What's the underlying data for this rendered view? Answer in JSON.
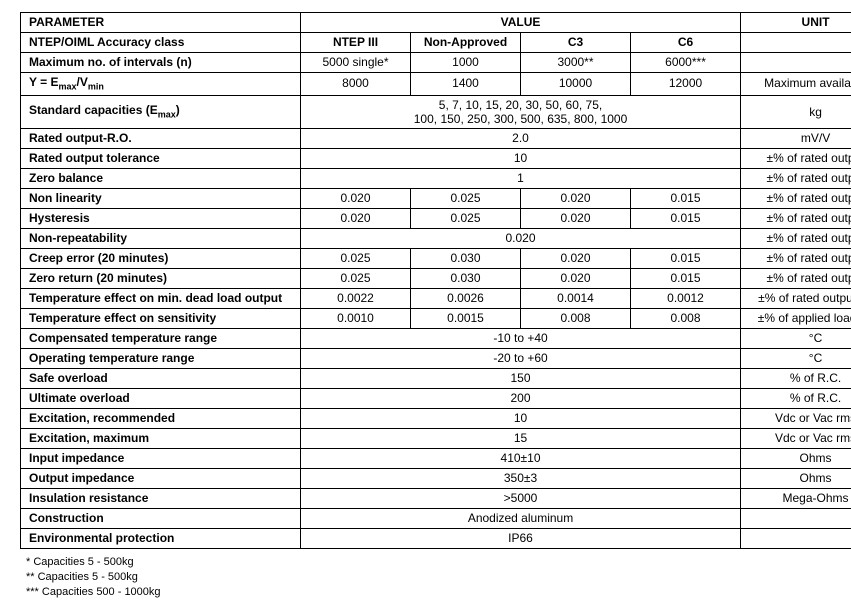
{
  "headers": {
    "parameter": "PARAMETER",
    "value": "VALUE",
    "unit": "UNIT",
    "col1": "NTEP III",
    "col2": "Non-Approved",
    "col3": "C3",
    "col4": "C6"
  },
  "rows": {
    "accuracy_class": {
      "label": "NTEP/OIML Accuracy class"
    },
    "max_intervals": {
      "label": "Maximum no. of intervals (n)",
      "v1": "5000 single*",
      "v2": "1000",
      "v3": "3000**",
      "v4": "6000***",
      "unit": ""
    },
    "y_emax_vmin": {
      "label_html": "Y = E<sub>max</sub>/V<sub>min</sub>",
      "v1": "8000",
      "v2": "1400",
      "v3": "10000",
      "v4": "12000",
      "unit": "Maximum available"
    },
    "std_cap": {
      "label_html": "Standard capacities (E<sub>max</sub>)",
      "line1": "5, 7, 10, 15, 20, 30, 50, 60, 75,",
      "line2": "100, 150, 250, 300, 500, 635, 800, 1000",
      "unit": "kg"
    },
    "rated_output": {
      "label": "Rated output-R.O.",
      "val": "2.0",
      "unit": "mV/V"
    },
    "rated_output_tol": {
      "label": "Rated output tolerance",
      "val": "10",
      "unit": "±% of rated output"
    },
    "zero_balance": {
      "label": "Zero balance",
      "val": "1",
      "unit": "±% of rated output"
    },
    "non_linearity": {
      "label": "Non linearity",
      "v1": "0.020",
      "v2": "0.025",
      "v3": "0.020",
      "v4": "0.015",
      "unit": "±% of rated output"
    },
    "hysteresis": {
      "label": "Hysteresis",
      "v1": "0.020",
      "v2": "0.025",
      "v3": "0.020",
      "v4": "0.015",
      "unit": "±% of rated output"
    },
    "non_repeat": {
      "label": "Non-repeatability",
      "val": "0.020",
      "unit": "±% of rated output"
    },
    "creep_error": {
      "label": "Creep error (20 minutes)",
      "v1": "0.025",
      "v2": "0.030",
      "v3": "0.020",
      "v4": "0.015",
      "unit": "±% of rated output"
    },
    "zero_return": {
      "label": "Zero return (20 minutes)",
      "v1": "0.025",
      "v2": "0.030",
      "v3": "0.020",
      "v4": "0.015",
      "unit": "±% of rated output"
    },
    "temp_min_dead": {
      "label": "Temperature effect on min. dead load output",
      "v1": "0.0022",
      "v2": "0.0026",
      "v3": "0.0014",
      "v4": "0.0012",
      "unit": "±% of rated output/°C"
    },
    "temp_sens": {
      "label": "Temperature effect on sensitivity",
      "v1": "0.0010",
      "v2": "0.0015",
      "v3": "0.008",
      "v4": "0.008",
      "unit": "±% of applied load/°C"
    },
    "comp_temp": {
      "label": "Compensated temperature range",
      "val": "-10 to +40",
      "unit": "°C"
    },
    "op_temp": {
      "label": "Operating temperature range",
      "val": "-20 to +60",
      "unit": "°C"
    },
    "safe_overload": {
      "label": "Safe overload",
      "val": "150",
      "unit": "% of R.C."
    },
    "ultimate_overload": {
      "label": "Ultimate overload",
      "val": "200",
      "unit": "% of R.C."
    },
    "exc_rec": {
      "label": "Excitation, recommended",
      "val": "10",
      "unit": "Vdc or Vac rms"
    },
    "exc_max": {
      "label": "Excitation, maximum",
      "val": "15",
      "unit": "Vdc or Vac rms"
    },
    "input_imp": {
      "label": "Input impedance",
      "val": "410±10",
      "unit": "Ohms"
    },
    "output_imp": {
      "label": "Output impedance",
      "val": "350±3",
      "unit": "Ohms"
    },
    "insulation": {
      "label": "Insulation resistance",
      "val": ">5000",
      "unit": "Mega-Ohms"
    },
    "construction": {
      "label": "Construction",
      "val": "Anodized aluminum",
      "unit": ""
    },
    "env_protection": {
      "label": "Environmental protection",
      "val": "IP66",
      "unit": ""
    }
  },
  "footnotes": {
    "a": "*    Capacities 5 - 500kg",
    "b": "**   Capacities 5 - 500kg",
    "c": "*** Capacities 500 - 1000kg"
  }
}
